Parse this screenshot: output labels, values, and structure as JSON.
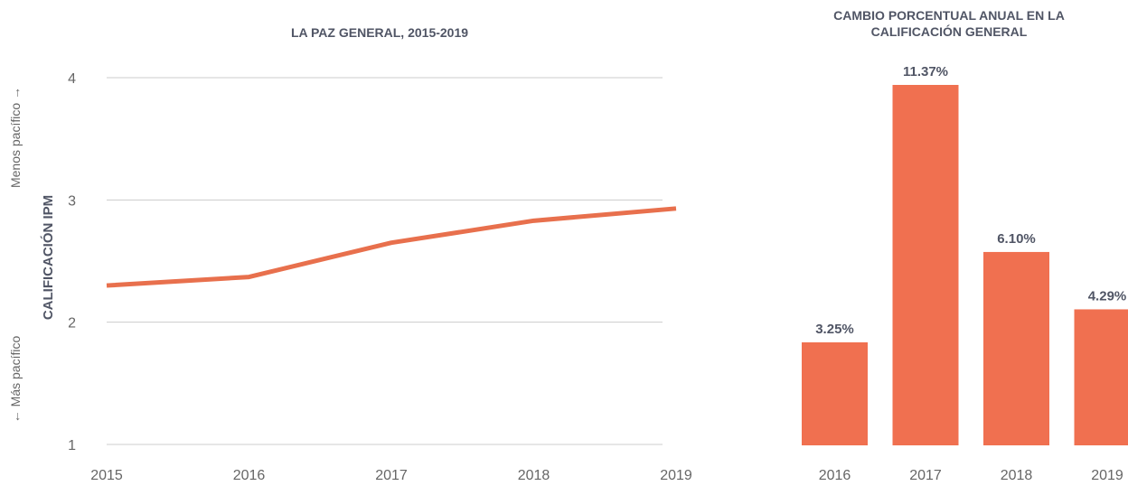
{
  "chart_data": [
    {
      "type": "line",
      "title": "LA PAZ GENERAL, 2015-2019",
      "ylabel": "CALIFICACIÓN IPM",
      "ylabel_top": "Menos pacífico",
      "ylabel_bottom": "Más pacífico",
      "x": [
        "2015",
        "2016",
        "2017",
        "2018",
        "2019"
      ],
      "y_ticks": [
        "1",
        "2",
        "3",
        "4"
      ],
      "ylim": [
        1,
        4
      ],
      "grid": true,
      "series": [
        {
          "values": [
            2.3,
            2.37,
            2.65,
            2.83,
            2.93
          ],
          "color": "#e8704d"
        }
      ]
    },
    {
      "type": "bar",
      "title": "CAMBIO PORCENTUAL ANUAL EN LA CALIFICACIÓN GENERAL",
      "categories": [
        "2016",
        "2017",
        "2018",
        "2019"
      ],
      "values": [
        3.25,
        11.37,
        6.1,
        4.29
      ],
      "labels": [
        "3.25%",
        "11.37%",
        "6.10%",
        "4.29%"
      ],
      "ylim": [
        0,
        12
      ],
      "color": "#f07050"
    }
  ],
  "colors": {
    "line": "#e8704d",
    "bar": "#f07050",
    "grid": "#cccccc",
    "title": "#505565"
  }
}
